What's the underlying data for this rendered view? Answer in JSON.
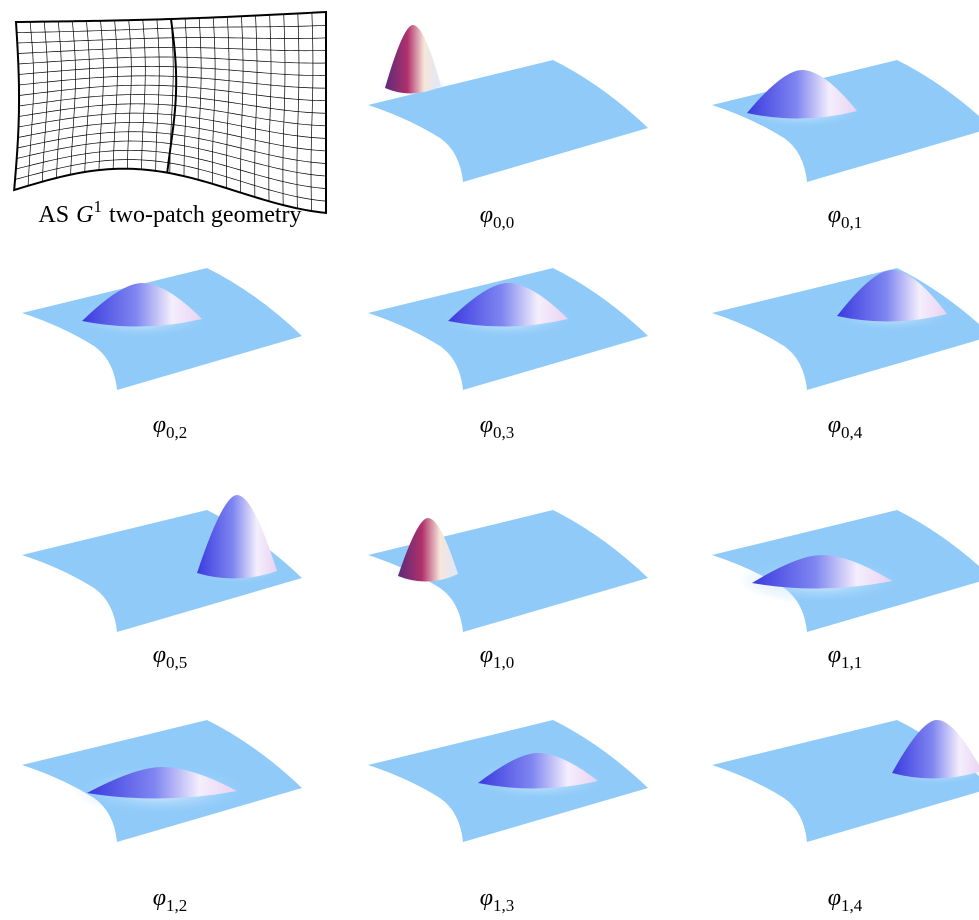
{
  "geometry": {
    "caption": {
      "prefix": "AS",
      "symbol": "G",
      "superscript": "1",
      "suffix": "two-patch geometry"
    }
  },
  "panels": [
    {
      "symbol": "φ",
      "subscript": "0,0"
    },
    {
      "symbol": "φ",
      "subscript": "0,1"
    },
    {
      "symbol": "φ",
      "subscript": "0,2"
    },
    {
      "symbol": "φ",
      "subscript": "0,3"
    },
    {
      "symbol": "φ",
      "subscript": "0,4"
    },
    {
      "symbol": "φ",
      "subscript": "0,5"
    },
    {
      "symbol": "φ",
      "subscript": "1,0"
    },
    {
      "symbol": "φ",
      "subscript": "1,1"
    },
    {
      "symbol": "φ",
      "subscript": "1,2"
    },
    {
      "symbol": "φ",
      "subscript": "1,3"
    },
    {
      "symbol": "φ",
      "subscript": "1,4"
    }
  ]
}
